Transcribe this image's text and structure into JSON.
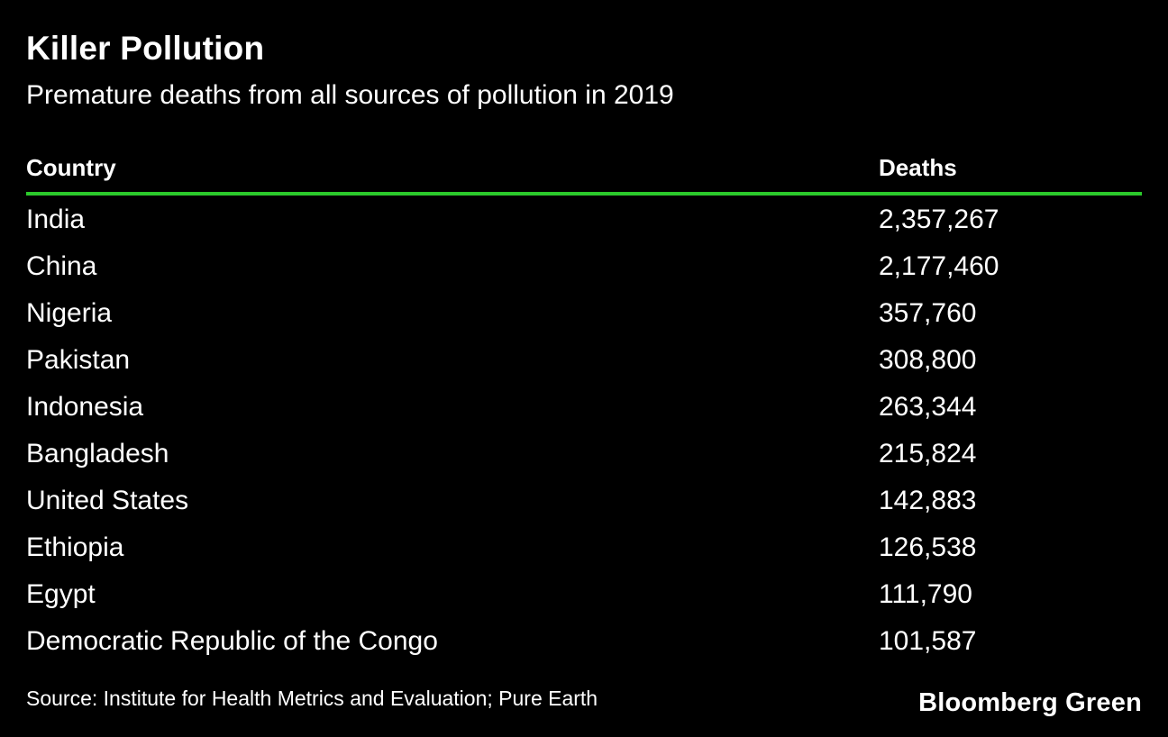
{
  "header": {
    "title": "Killer Pollution",
    "subtitle": "Premature deaths from all sources of pollution in 2019"
  },
  "table": {
    "columns": {
      "country": "Country",
      "deaths": "Deaths"
    },
    "rows": [
      {
        "country": "India",
        "deaths": "2,357,267"
      },
      {
        "country": "China",
        "deaths": "2,177,460"
      },
      {
        "country": "Nigeria",
        "deaths": "357,760"
      },
      {
        "country": "Pakistan",
        "deaths": "308,800"
      },
      {
        "country": "Indonesia",
        "deaths": "263,344"
      },
      {
        "country": "Bangladesh",
        "deaths": "215,824"
      },
      {
        "country": "United States",
        "deaths": "142,883"
      },
      {
        "country": "Ethiopia",
        "deaths": "126,538"
      },
      {
        "country": "Egypt",
        "deaths": "111,790"
      },
      {
        "country": "Democratic Republic of the Congo",
        "deaths": "101,587"
      }
    ]
  },
  "footer": {
    "source": "Source: Institute for Health Metrics and Evaluation; Pure Earth",
    "brand": "Bloomberg Green"
  },
  "colors": {
    "background": "#000000",
    "text": "#ffffff",
    "accent_green": "#2bc92b"
  },
  "chart_data": {
    "type": "table",
    "title": "Killer Pollution",
    "subtitle": "Premature deaths from all sources of pollution in 2019",
    "columns": [
      "Country",
      "Deaths"
    ],
    "categories": [
      "India",
      "China",
      "Nigeria",
      "Pakistan",
      "Indonesia",
      "Bangladesh",
      "United States",
      "Ethiopia",
      "Egypt",
      "Democratic Republic of the Congo"
    ],
    "values": [
      2357267,
      2177460,
      357760,
      308800,
      263344,
      215824,
      142883,
      126538,
      111790,
      101587
    ],
    "ylabel": "Deaths",
    "xlabel": "Country",
    "year": 2019,
    "source": "Source: Institute for Health Metrics and Evaluation; Pure Earth",
    "brand": "Bloomberg Green",
    "legend": false,
    "grid": false
  }
}
